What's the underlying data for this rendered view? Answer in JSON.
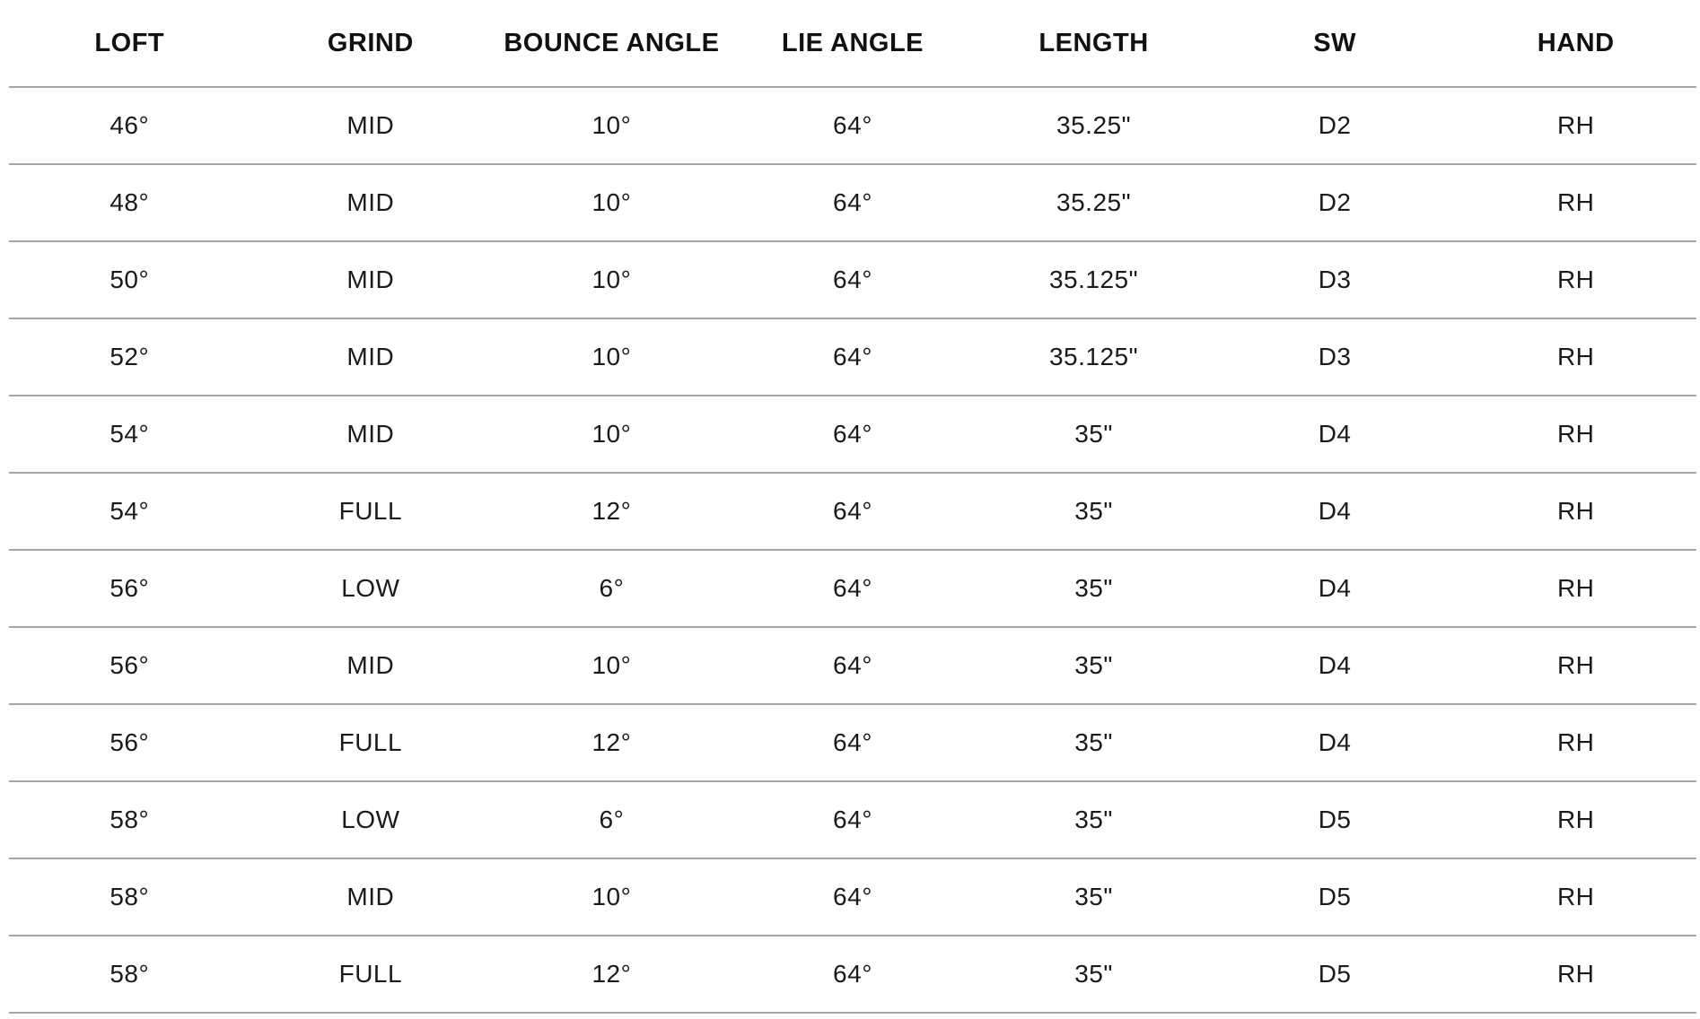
{
  "table": {
    "headers": [
      "LOFT",
      "GRIND",
      "BOUNCE ANGLE",
      "LIE ANGLE",
      "LENGTH",
      "SW",
      "HAND"
    ],
    "rows": [
      [
        "46°",
        "MID",
        "10°",
        "64°",
        "35.25\"",
        "D2",
        "RH"
      ],
      [
        "48°",
        "MID",
        "10°",
        "64°",
        "35.25\"",
        "D2",
        "RH"
      ],
      [
        "50°",
        "MID",
        "10°",
        "64°",
        "35.125\"",
        "D3",
        "RH"
      ],
      [
        "52°",
        "MID",
        "10°",
        "64°",
        "35.125\"",
        "D3",
        "RH"
      ],
      [
        "54°",
        "MID",
        "10°",
        "64°",
        "35\"",
        "D4",
        "RH"
      ],
      [
        "54°",
        "FULL",
        "12°",
        "64°",
        "35\"",
        "D4",
        "RH"
      ],
      [
        "56°",
        "LOW",
        "6°",
        "64°",
        "35\"",
        "D4",
        "RH"
      ],
      [
        "56°",
        "MID",
        "10°",
        "64°",
        "35\"",
        "D4",
        "RH"
      ],
      [
        "56°",
        "FULL",
        "12°",
        "64°",
        "35\"",
        "D4",
        "RH"
      ],
      [
        "58°",
        "LOW",
        "6°",
        "64°",
        "35\"",
        "D5",
        "RH"
      ],
      [
        "58°",
        "MID",
        "10°",
        "64°",
        "35\"",
        "D5",
        "RH"
      ],
      [
        "58°",
        "FULL",
        "12°",
        "64°",
        "35\"",
        "D5",
        "RH"
      ]
    ]
  },
  "colors": {
    "text": "#1a1a1a",
    "rule": "#a6a6a6",
    "background": "#ffffff"
  }
}
